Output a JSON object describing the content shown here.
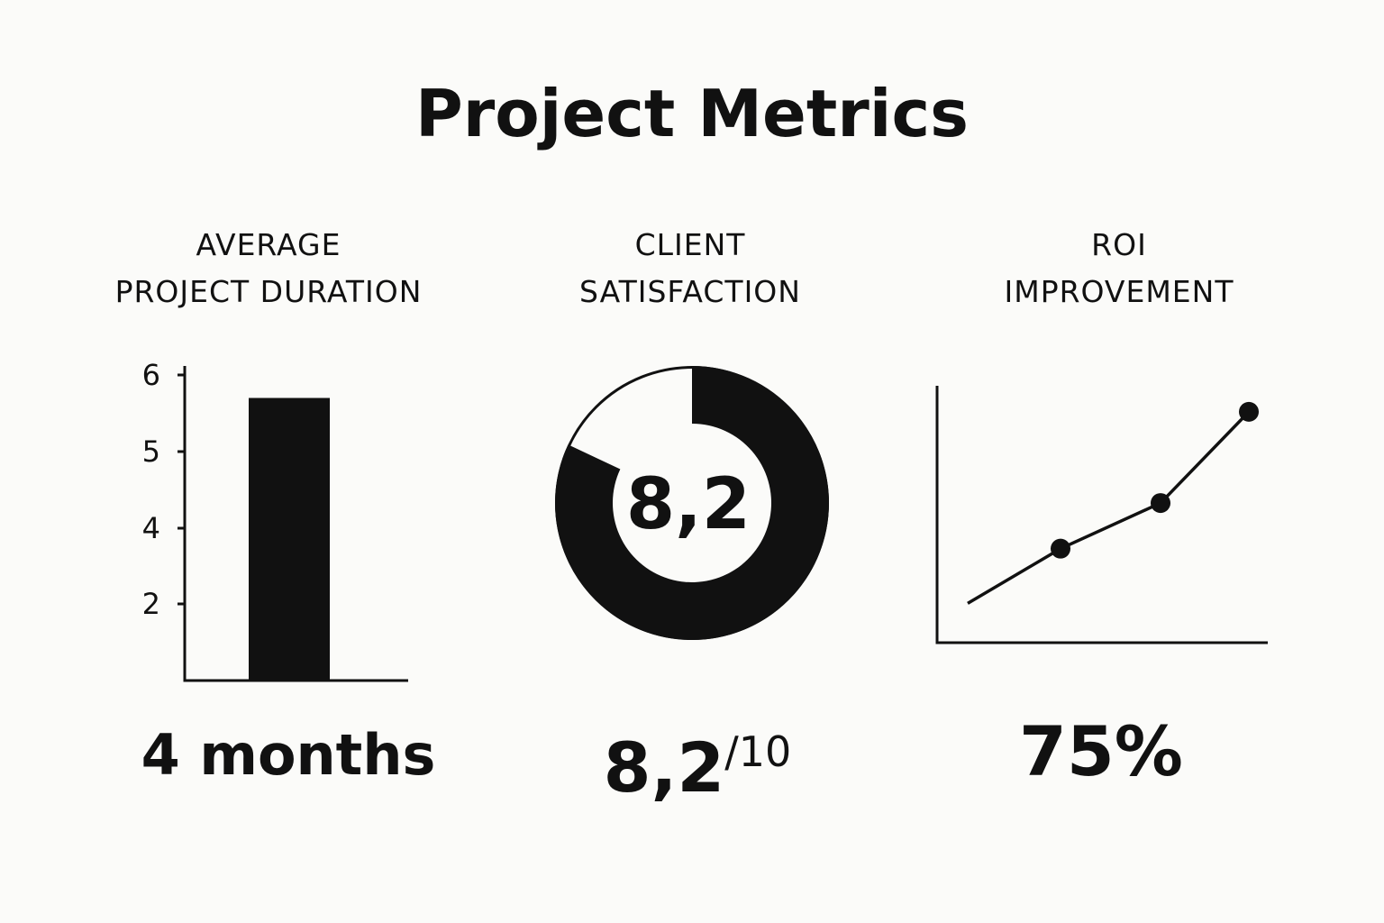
{
  "title": "Project Metrics",
  "panels": [
    {
      "heading_line1": "AVERAGE",
      "heading_line2": "PROJECT DURATION",
      "value": "4 months"
    },
    {
      "heading_line1": "CLIENT",
      "heading_line2": "SATISFACTION",
      "value_main": "8,2",
      "value_suffix": "/10",
      "center_label": "8,2"
    },
    {
      "heading_line1": "ROI",
      "heading_line2": "IMPROVEMENT",
      "value": "75%"
    }
  ],
  "colors": {
    "ink": "#111111",
    "background": "#fbfbf9"
  },
  "chart_data": [
    {
      "type": "bar",
      "categories": [
        ""
      ],
      "values": [
        5.7
      ],
      "yticks": [
        "2",
        "4",
        "5",
        "6"
      ],
      "ylim": [
        0,
        6
      ],
      "grid": false
    },
    {
      "type": "pie",
      "variant": "donut",
      "values": [
        8.2
      ],
      "max": 10
    },
    {
      "type": "line",
      "x": [
        0,
        1,
        2,
        3
      ],
      "y": [
        1,
        2.2,
        3.2,
        5.2
      ],
      "markers_on": [
        1,
        2,
        3
      ],
      "grid": false
    }
  ]
}
